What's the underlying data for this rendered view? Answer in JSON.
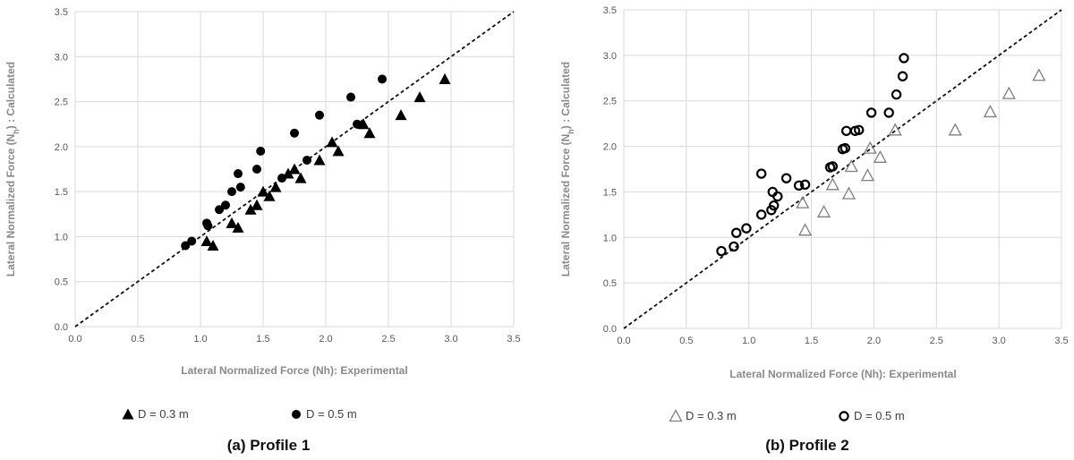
{
  "chart_data": [
    {
      "type": "scatter",
      "caption": "(a) Profile 1",
      "xlabel": "Lateral Normalized Force (Nh):  Experimental",
      "ylabel_main": "Lateral Normalized Force (N",
      "ylabel_sub": "h",
      "ylabel_tail": ") : Calculated",
      "xlim": [
        0,
        3.5
      ],
      "ylim": [
        0,
        3.5
      ],
      "xticks": [
        "0.0",
        "0.5",
        "1.0",
        "1.5",
        "2.0",
        "2.5",
        "3.0",
        "3.5"
      ],
      "yticks": [
        "0.0",
        "0.5",
        "1.0",
        "1.5",
        "2.0",
        "2.5",
        "3.0",
        "3.5"
      ],
      "grid": true,
      "reference_line": "y = x (dashed)",
      "legend_position": "bottom",
      "series": [
        {
          "name": "D = 0.3 m",
          "marker": "filled-triangle",
          "color": "#000000",
          "points": [
            [
              1.05,
              0.95
            ],
            [
              1.1,
              0.9
            ],
            [
              1.25,
              1.15
            ],
            [
              1.3,
              1.1
            ],
            [
              1.4,
              1.3
            ],
            [
              1.45,
              1.35
            ],
            [
              1.5,
              1.5
            ],
            [
              1.55,
              1.45
            ],
            [
              1.6,
              1.55
            ],
            [
              1.7,
              1.7
            ],
            [
              1.75,
              1.75
            ],
            [
              1.8,
              1.65
            ],
            [
              1.95,
              1.85
            ],
            [
              2.05,
              2.05
            ],
            [
              2.1,
              1.95
            ],
            [
              2.3,
              2.25
            ],
            [
              2.35,
              2.15
            ],
            [
              2.6,
              2.35
            ],
            [
              2.75,
              2.55
            ],
            [
              2.95,
              2.75
            ]
          ]
        },
        {
          "name": "D = 0.5 m",
          "marker": "filled-circle",
          "color": "#000000",
          "points": [
            [
              0.88,
              0.9
            ],
            [
              0.93,
              0.95
            ],
            [
              1.05,
              1.15
            ],
            [
              1.06,
              1.12
            ],
            [
              1.15,
              1.3
            ],
            [
              1.2,
              1.35
            ],
            [
              1.25,
              1.5
            ],
            [
              1.3,
              1.7
            ],
            [
              1.32,
              1.55
            ],
            [
              1.45,
              1.75
            ],
            [
              1.48,
              1.95
            ],
            [
              1.65,
              1.65
            ],
            [
              1.75,
              2.15
            ],
            [
              1.85,
              1.85
            ],
            [
              1.95,
              2.35
            ],
            [
              2.2,
              2.55
            ],
            [
              2.25,
              2.25
            ],
            [
              2.45,
              2.75
            ]
          ]
        }
      ]
    },
    {
      "type": "scatter",
      "caption": "(b) Profile 2",
      "xlabel": "Lateral Normalized Force (Nh):   Experimental",
      "ylabel_main": "Lateral Normalized Force (N",
      "ylabel_sub": "h",
      "ylabel_tail": ") : Calculated",
      "xlim": [
        0,
        3.5
      ],
      "ylim": [
        0,
        3.5
      ],
      "xticks": [
        "0.0",
        "0.5",
        "1.0",
        "1.5",
        "2.0",
        "2.5",
        "3.0",
        "3.5"
      ],
      "yticks": [
        "0.0",
        "0.5",
        "1.0",
        "1.5",
        "2.0",
        "2.5",
        "3.0",
        "3.5"
      ],
      "grid": true,
      "reference_line": "y = x (dashed)",
      "legend_position": "bottom",
      "series": [
        {
          "name": "D = 0.3 m",
          "marker": "open-triangle",
          "color": "#7f7f7f",
          "points": [
            [
              1.43,
              1.38
            ],
            [
              1.45,
              1.08
            ],
            [
              1.6,
              1.28
            ],
            [
              1.67,
              1.58
            ],
            [
              1.8,
              1.48
            ],
            [
              1.82,
              1.78
            ],
            [
              1.95,
              1.68
            ],
            [
              1.97,
              1.98
            ],
            [
              2.05,
              1.88
            ],
            [
              2.17,
              2.18
            ],
            [
              2.65,
              2.18
            ],
            [
              2.93,
              2.38
            ],
            [
              3.08,
              2.58
            ],
            [
              3.32,
              2.78
            ]
          ]
        },
        {
          "name": "D = 0.5 m",
          "marker": "open-circle",
          "color": "#000000",
          "points": [
            [
              0.78,
              0.85
            ],
            [
              0.88,
              0.9
            ],
            [
              0.9,
              1.05
            ],
            [
              0.98,
              1.1
            ],
            [
              1.1,
              1.25
            ],
            [
              1.1,
              1.7
            ],
            [
              1.18,
              1.3
            ],
            [
              1.19,
              1.5
            ],
            [
              1.2,
              1.35
            ],
            [
              1.23,
              1.45
            ],
            [
              1.3,
              1.65
            ],
            [
              1.4,
              1.57
            ],
            [
              1.45,
              1.58
            ],
            [
              1.65,
              1.77
            ],
            [
              1.67,
              1.78
            ],
            [
              1.75,
              1.97
            ],
            [
              1.77,
              1.98
            ],
            [
              1.78,
              2.17
            ],
            [
              1.85,
              2.17
            ],
            [
              1.88,
              2.18
            ],
            [
              1.98,
              2.37
            ],
            [
              2.12,
              2.37
            ],
            [
              2.18,
              2.57
            ],
            [
              2.23,
              2.77
            ],
            [
              2.24,
              2.97
            ]
          ]
        }
      ]
    }
  ]
}
